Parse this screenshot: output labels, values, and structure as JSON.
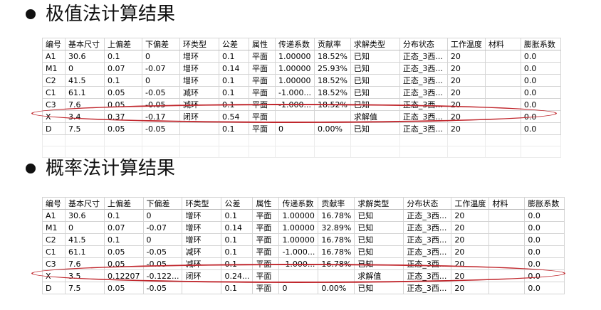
{
  "sections": [
    {
      "heading": "极值法计算结果",
      "columns": [
        "编号",
        "基本尺寸",
        "上偏差",
        "下偏差",
        "环类型",
        "公差",
        "属性",
        "传递系数",
        "贡献率",
        "求解类型",
        "分布状态",
        "工作温度",
        "材料",
        "膨胀系数"
      ],
      "rows": [
        [
          "A1",
          "30.6",
          "0.1",
          "0",
          "增环",
          "0.1",
          "平面",
          "1.00000",
          "18.52%",
          "已知",
          "正态_3西...",
          "20",
          "",
          "0.0"
        ],
        [
          "M1",
          "0",
          "0.07",
          "-0.07",
          "增环",
          "0.14",
          "平面",
          "1.00000",
          "25.93%",
          "已知",
          "正态_3西...",
          "20",
          "",
          "0.0"
        ],
        [
          "C2",
          "41.5",
          "0.1",
          "0",
          "增环",
          "0.1",
          "平面",
          "1.00000",
          "18.52%",
          "已知",
          "正态_3西...",
          "20",
          "",
          "0.0"
        ],
        [
          "C1",
          "61.1",
          "0.05",
          "-0.05",
          "减环",
          "0.1",
          "平面",
          "-1.000...",
          "18.52%",
          "已知",
          "正态_3西...",
          "20",
          "",
          "0.0"
        ],
        [
          "C3",
          "7.6",
          "0.05",
          "-0.05",
          "减环",
          "0.1",
          "平面",
          "-1.000...",
          "18.52%",
          "已知",
          "正态_3西...",
          "20",
          "",
          "0.0"
        ],
        [
          "X",
          "3.4",
          "0.37",
          "-0.17",
          "闭环",
          "0.54",
          "平面",
          "",
          "",
          "求解值",
          "正态_3西...",
          "20",
          "",
          "0.0"
        ],
        [
          "D",
          "7.5",
          "0.05",
          "-0.05",
          "",
          "0.1",
          "平面",
          "0",
          "0.00%",
          "已知",
          "正态_3西...",
          "20",
          "",
          "0.0"
        ]
      ]
    },
    {
      "heading": "概率法计算结果",
      "columns": [
        "编号",
        "基本尺寸",
        "上偏差",
        "下偏差",
        "环类型",
        "公差",
        "属性",
        "传递系数",
        "贡献率",
        "求解类型",
        "分布状态",
        "工作温度",
        "材料",
        "膨胀系数"
      ],
      "rows": [
        [
          "A1",
          "30.6",
          "0.1",
          "0",
          "增环",
          "0.1",
          "平面",
          "1.00000",
          "16.78%",
          "已知",
          "正态_3西...",
          "20",
          "",
          "0.0"
        ],
        [
          "M1",
          "0",
          "0.07",
          "-0.07",
          "增环",
          "0.14",
          "平面",
          "1.00000",
          "32.89%",
          "已知",
          "正态_3西...",
          "20",
          "",
          "0.0"
        ],
        [
          "C2",
          "41.5",
          "0.1",
          "0",
          "增环",
          "0.1",
          "平面",
          "1.00000",
          "16.78%",
          "已知",
          "正态_3西...",
          "20",
          "",
          "0.0"
        ],
        [
          "C1",
          "61.1",
          "0.05",
          "-0.05",
          "减环",
          "0.1",
          "平面",
          "-1.000...",
          "16.78%",
          "已知",
          "正态_3西...",
          "20",
          "",
          "0.0"
        ],
        [
          "C3",
          "7.6",
          "0.05",
          "-0.05",
          "减环",
          "0.1",
          "平面",
          "-1.000...",
          "16.78%",
          "已知",
          "正态_3西...",
          "20",
          "",
          "0.0"
        ],
        [
          "X",
          "3.5",
          "0.12207",
          "-0.122...",
          "闭环",
          "0.24...",
          "平面",
          "",
          "",
          "求解值",
          "正态_3西...",
          "20",
          "",
          "0.0"
        ],
        [
          "D",
          "7.5",
          "0.05",
          "-0.05",
          "",
          "0.1",
          "平面",
          "0",
          "0.00%",
          "已知",
          "正态_3西...",
          "20",
          "",
          "0.0"
        ]
      ]
    }
  ]
}
